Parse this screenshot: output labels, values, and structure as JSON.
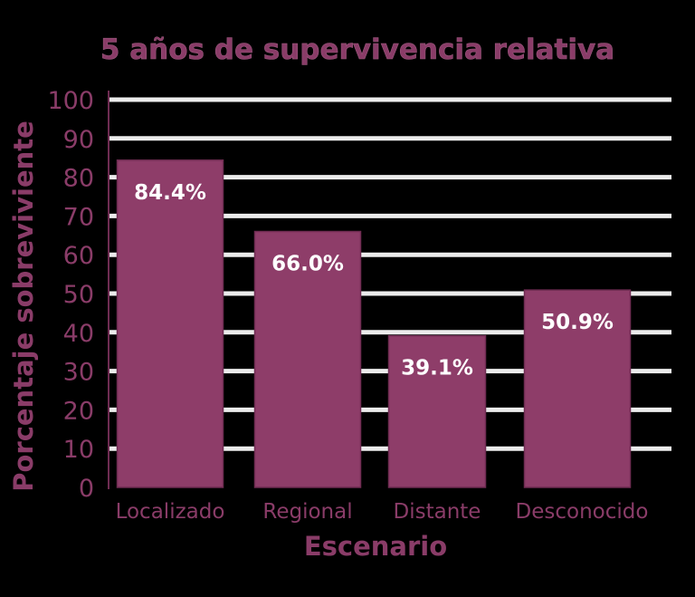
{
  "chart_data": {
    "type": "bar",
    "title": "5 años de supervivencia relativa",
    "xlabel": "Escenario",
    "ylabel": "Porcentaje sobreviviente",
    "categories": [
      "Localizado",
      "Regional",
      "Distante",
      "Desconocido"
    ],
    "values": [
      84.4,
      66.0,
      39.1,
      50.9
    ],
    "data_labels": [
      "84.4%",
      "66.0%",
      "39.1%",
      "50.9%"
    ],
    "ylim": [
      0,
      100
    ],
    "yticks": [
      "0",
      "10",
      "20",
      "30",
      "40",
      "50",
      "60",
      "70",
      "80",
      "90",
      "100"
    ],
    "grid": true,
    "legend": "none",
    "colors": {
      "bar": "#8e3d69",
      "bar_edge": "#6f2c52",
      "text": "#8a3c68",
      "grid": "#ececec",
      "data_label": "#ffffff"
    }
  }
}
